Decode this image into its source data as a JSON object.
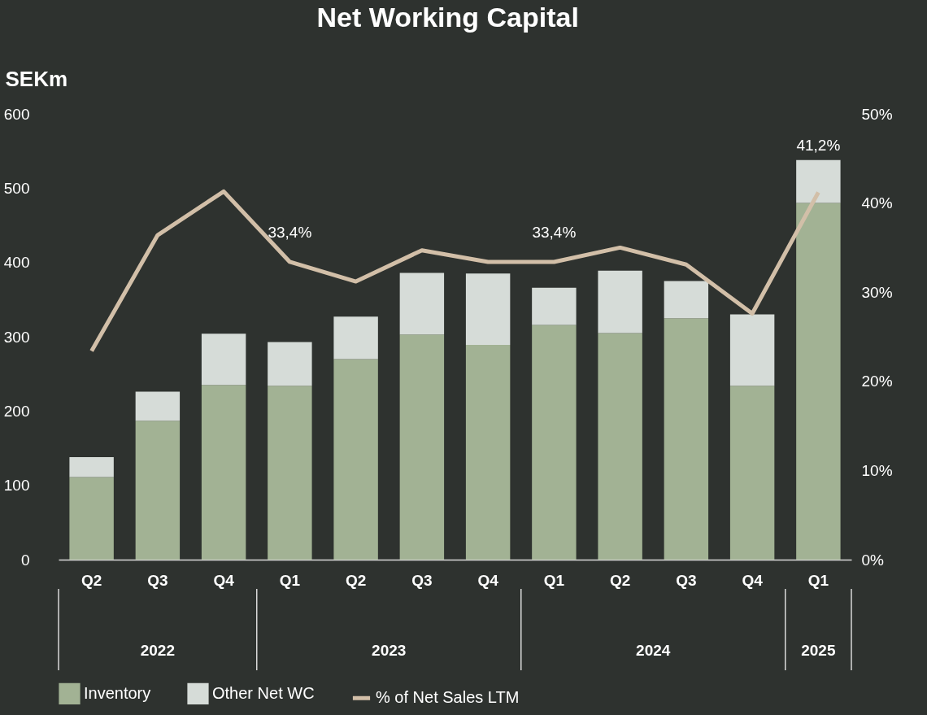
{
  "chart_data": {
    "type": "bar",
    "title": "Net Working Capital",
    "ylabel": "SEKm",
    "categories": [
      "Q2",
      "Q3",
      "Q4",
      "Q1",
      "Q2",
      "Q3",
      "Q4",
      "Q1",
      "Q2",
      "Q3",
      "Q4",
      "Q1"
    ],
    "annotations": [
      "2022",
      "2023",
      "2024",
      "2025"
    ],
    "stacked": true,
    "legend": "bottom",
    "ylim": [
      0,
      600
    ],
    "yticks": [
      0,
      100,
      200,
      300,
      400,
      500,
      600
    ],
    "y2lim": [
      0,
      50
    ],
    "y2ticks": [
      {
        "value": 0,
        "label": "0%"
      },
      {
        "value": 10,
        "label": "10%"
      },
      {
        "value": 20,
        "label": "20%"
      },
      {
        "value": 30,
        "label": "30%"
      },
      {
        "value": 40,
        "label": "40%"
      },
      {
        "value": 50,
        "label": "50%"
      }
    ],
    "series": [
      {
        "name": "Inventory",
        "color": "#a2b294",
        "values": [
          111,
          187,
          235,
          234,
          270,
          303,
          289,
          316,
          305,
          325,
          234,
          480
        ]
      },
      {
        "name": "Other Net WC",
        "color": "#d6dcd8",
        "values": [
          27,
          39,
          69,
          59,
          57,
          83,
          96,
          50,
          84,
          50,
          96,
          58
        ]
      },
      {
        "name": "% of Net Sales LTM",
        "type": "line",
        "axis": "y2",
        "color": "#d2bfa8",
        "values": [
          23.4,
          36.4,
          41.3,
          33.4,
          31.2,
          34.7,
          33.4,
          33.4,
          35.0,
          33.1,
          27.6,
          41.2
        ],
        "value_labels": [
          null,
          null,
          null,
          "33,4%",
          null,
          null,
          null,
          "33,4%",
          null,
          null,
          null,
          "41,2%"
        ]
      }
    ]
  }
}
